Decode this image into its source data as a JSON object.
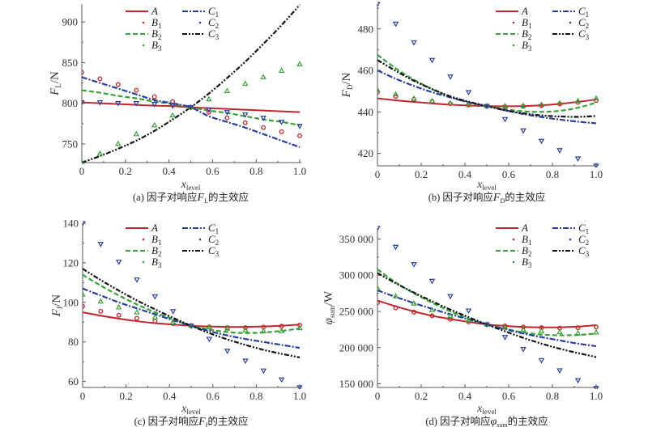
{
  "chart_data": [
    {
      "id": "a",
      "type": "line",
      "caption": "(a) 因子对响应F_L的主效应",
      "caption_prefix": "(a) 因子对响应",
      "caption_var": "F",
      "caption_sub": "L",
      "caption_suffix": "的主效应",
      "xlabel": "x",
      "xlabel_sub": "level",
      "ylabel": "F",
      "ylabel_sub": "L",
      "ylabel_unit": "/N",
      "xlim": [
        0,
        1.0
      ],
      "ylim": [
        727,
        922
      ],
      "xticks": [
        0,
        0.2,
        0.4,
        0.6,
        0.8,
        1.0
      ],
      "xtick_labels": [
        "0",
        "0.2",
        "0.4",
        "0.6",
        "0.8",
        "1.0"
      ],
      "yticks": [
        750,
        800,
        850,
        900
      ],
      "ytick_labels": [
        "750",
        "800",
        "850",
        "900"
      ],
      "legend": "top-center",
      "x": [
        0,
        0.0833,
        0.1667,
        0.25,
        0.3333,
        0.4167,
        0.5,
        0.5833,
        0.6667,
        0.75,
        0.8333,
        0.9167,
        1.0
      ],
      "series": [
        {
          "name": "A",
          "kind": "line",
          "style": "solid",
          "color": "#c0262d",
          "values": [
            801,
            800,
            799,
            798,
            797,
            796.5,
            795,
            794,
            793,
            792,
            791,
            790,
            789
          ]
        },
        {
          "name": "B1",
          "kind": "marker",
          "marker": "circle",
          "color": "#c0262d",
          "values": [
            838,
            830,
            823,
            816,
            808,
            802,
            795,
            789,
            782,
            776,
            770,
            765,
            760
          ]
        },
        {
          "name": "B2",
          "kind": "line",
          "style": "dash",
          "color": "#3aa03a",
          "values": [
            816,
            813,
            809,
            806,
            802,
            799,
            795,
            791,
            788,
            784,
            780,
            777,
            773
          ]
        },
        {
          "name": "B3",
          "kind": "marker",
          "marker": "triangle",
          "color": "#3aa03a",
          "values": [
            727,
            738,
            750,
            762,
            773,
            785,
            795,
            805,
            815,
            824,
            832,
            840,
            848
          ]
        },
        {
          "name": "C1",
          "kind": "line",
          "style": "dashdot",
          "color": "#2a3f9c",
          "values": [
            832,
            825,
            818,
            811,
            804,
            800,
            795,
            784,
            777,
            770,
            762,
            754,
            746
          ]
        },
        {
          "name": "C2",
          "kind": "marker",
          "marker": "triangle-down",
          "color": "#2a3f9c",
          "values": [
            801,
            801,
            800,
            800,
            799,
            797,
            795,
            792,
            789,
            786,
            782,
            777,
            772
          ]
        },
        {
          "name": "C3",
          "kind": "line",
          "style": "dashdotdot",
          "color": "#111111",
          "values": [
            727,
            735,
            744,
            754,
            766,
            780,
            795,
            812,
            831,
            851,
            873,
            896,
            921
          ]
        }
      ]
    },
    {
      "id": "b",
      "type": "line",
      "caption": "(b) 因子对响应F_D的主效应",
      "caption_prefix": "(b) 因子对响应",
      "caption_var": "F",
      "caption_sub": "D",
      "caption_suffix": "的主效应",
      "xlabel": "x",
      "xlabel_sub": "level",
      "ylabel": "F",
      "ylabel_sub": "D",
      "ylabel_unit": "/N",
      "xlim": [
        0,
        1.0
      ],
      "ylim": [
        414,
        492
      ],
      "xticks": [
        0,
        0.2,
        0.4,
        0.6,
        0.8,
        1.0
      ],
      "xtick_labels": [
        "0",
        "0.2",
        "0.4",
        "0.6",
        "0.8",
        "1.0"
      ],
      "yticks": [
        420,
        440,
        460,
        480
      ],
      "ytick_labels": [
        "420",
        "440",
        "460",
        "480"
      ],
      "legend": "top-right",
      "x": [
        0,
        0.0833,
        0.1667,
        0.25,
        0.3333,
        0.4167,
        0.5,
        0.5833,
        0.6667,
        0.75,
        0.8333,
        0.9167,
        1.0
      ],
      "series": [
        {
          "name": "A",
          "kind": "line",
          "style": "solid",
          "color": "#c0262d",
          "values": [
            446.5,
            445.6,
            444.8,
            444.1,
            443.5,
            443.1,
            442.8,
            442.7,
            442.8,
            443.2,
            443.9,
            444.8,
            446
          ]
        },
        {
          "name": "B1",
          "kind": "marker",
          "marker": "circle",
          "color": "#c0262d",
          "values": [
            449.5,
            447.5,
            446,
            445,
            444,
            443.3,
            442.8,
            442.6,
            442.7,
            443.1,
            443.8,
            444.6,
            445.5
          ]
        },
        {
          "name": "B2",
          "kind": "line",
          "style": "dash",
          "color": "#3aa03a",
          "values": [
            467.5,
            461,
            455.5,
            451,
            447.3,
            444.6,
            442.8,
            441.3,
            440.3,
            440,
            440.5,
            442,
            444.5
          ]
        },
        {
          "name": "B3",
          "kind": "marker",
          "marker": "triangle",
          "color": "#3aa03a",
          "values": [
            450.5,
            448.5,
            446.5,
            445.3,
            444.2,
            443.4,
            442.8,
            442.8,
            443,
            443.5,
            444.2,
            445.3,
            446.5
          ]
        },
        {
          "name": "C1",
          "kind": "line",
          "style": "dashdot",
          "color": "#2a3f9c",
          "values": [
            460,
            456,
            452.5,
            449.5,
            447,
            444.6,
            442.8,
            440.8,
            439,
            437.5,
            436.3,
            435.3,
            434.5
          ]
        },
        {
          "name": "C2",
          "kind": "marker",
          "marker": "triangle-down",
          "color": "#2a3f9c",
          "values": [
            492,
            482.5,
            473.5,
            465,
            457,
            449.5,
            442.8,
            436.5,
            431,
            426,
            421.5,
            417.5,
            414
          ]
        },
        {
          "name": "C3",
          "kind": "line",
          "style": "dashdotdot",
          "color": "#111111",
          "values": [
            465,
            459.8,
            455,
            451,
            447.5,
            444.9,
            442.8,
            440.8,
            439.3,
            438.3,
            437.8,
            437.6,
            438
          ]
        }
      ]
    },
    {
      "id": "c",
      "type": "line",
      "caption": "(c) 因子对响应F_f的主效应",
      "caption_prefix": "(c) 因子对响应",
      "caption_var": "F",
      "caption_sub": "f",
      "caption_suffix": "的主效应",
      "xlabel": "x",
      "xlabel_sub": "level",
      "ylabel": "F",
      "ylabel_sub": "f",
      "ylabel_unit": "/N",
      "xlim": [
        0,
        1.0
      ],
      "ylim": [
        57,
        140
      ],
      "xticks": [
        0,
        0.2,
        0.4,
        0.6,
        0.8,
        1.0
      ],
      "xtick_labels": [
        "0",
        "0.2",
        "0.4",
        "0.6",
        "0.8",
        "1.0"
      ],
      "yticks": [
        60,
        80,
        100,
        120,
        140
      ],
      "ytick_labels": [
        "60",
        "80",
        "100",
        "120",
        "140"
      ],
      "legend": "top-center",
      "x": [
        0,
        0.0833,
        0.1667,
        0.25,
        0.3333,
        0.4167,
        0.5,
        0.5833,
        0.6667,
        0.75,
        0.8333,
        0.9167,
        1.0
      ],
      "series": [
        {
          "name": "A",
          "kind": "line",
          "style": "solid",
          "color": "#c0262d",
          "values": [
            95,
            93.3,
            91.8,
            90.5,
            89.5,
            88.8,
            88.2,
            87.8,
            87.6,
            87.6,
            87.8,
            88.2,
            88.8
          ]
        },
        {
          "name": "B1",
          "kind": "marker",
          "marker": "circle",
          "color": "#c0262d",
          "values": [
            98,
            95.5,
            93.5,
            92,
            90.5,
            89.3,
            88.2,
            87.6,
            87.2,
            87.2,
            87.5,
            88,
            88.5
          ]
        },
        {
          "name": "B2",
          "kind": "line",
          "style": "dash",
          "color": "#3aa03a",
          "values": [
            114,
            108.5,
            103.5,
            99,
            95,
            91.5,
            88.2,
            86.3,
            85,
            84.5,
            84.8,
            85.6,
            86.8
          ]
        },
        {
          "name": "B3",
          "kind": "marker",
          "marker": "triangle",
          "color": "#3aa03a",
          "values": [
            104,
            100.5,
            97.5,
            95,
            92.5,
            90,
            88.2,
            87.5,
            86.8,
            86,
            85.5,
            85.5,
            87
          ]
        },
        {
          "name": "C1",
          "kind": "line",
          "style": "dashdot",
          "color": "#2a3f9c",
          "values": [
            107,
            103.5,
            100,
            97,
            94,
            91,
            88.2,
            85.5,
            83.3,
            81.5,
            80,
            78.5,
            77
          ]
        },
        {
          "name": "C2",
          "kind": "marker",
          "marker": "triangle-down",
          "color": "#2a3f9c",
          "values": [
            140,
            129.5,
            120.5,
            111.5,
            103,
            95.5,
            88.2,
            81.5,
            75.5,
            70.5,
            65.5,
            61,
            57
          ]
        },
        {
          "name": "C3",
          "kind": "line",
          "style": "dashdotdot",
          "color": "#111111",
          "values": [
            117,
            111.3,
            106,
            101,
            96.5,
            92.2,
            88.2,
            84.5,
            81.3,
            78.5,
            76,
            74,
            72.2
          ]
        }
      ]
    },
    {
      "id": "d",
      "type": "line",
      "caption": "(d) 因子对响应φ_sum的主效应",
      "caption_prefix": "(d) 因子对响应",
      "caption_var": "φ",
      "caption_sub": "sum",
      "caption_suffix": "的主效应",
      "xlabel": "x",
      "xlabel_sub": "level",
      "ylabel": "φ",
      "ylabel_sub": "sum",
      "ylabel_unit": "/W",
      "xlim": [
        0,
        1.0
      ],
      "ylim": [
        145000,
        365000
      ],
      "xticks": [
        0,
        0.2,
        0.4,
        0.6,
        0.8,
        1.0
      ],
      "xtick_labels": [
        "0",
        "0.2",
        "0.4",
        "0.6",
        "0.8",
        "1.0"
      ],
      "yticks": [
        150000,
        200000,
        250000,
        300000,
        350000
      ],
      "ytick_labels": [
        "150 000",
        "200 000",
        "250 000",
        "300 000",
        "350 000"
      ],
      "legend": "top-right",
      "x": [
        0,
        0.0833,
        0.1667,
        0.25,
        0.3333,
        0.4167,
        0.5,
        0.5833,
        0.6667,
        0.75,
        0.8333,
        0.9167,
        1.0
      ],
      "series": [
        {
          "name": "A",
          "kind": "line",
          "style": "solid",
          "color": "#c0262d",
          "values": [
            265000,
            257000,
            250000,
            244000,
            239500,
            235500,
            232000,
            230000,
            228500,
            228000,
            228000,
            229000,
            231000
          ]
        },
        {
          "name": "B1",
          "kind": "marker",
          "marker": "circle",
          "color": "#c0262d",
          "values": [
            262000,
            255000,
            249000,
            244000,
            239000,
            235500,
            232000,
            230000,
            228500,
            227500,
            227000,
            227500,
            228500
          ]
        },
        {
          "name": "B2",
          "kind": "line",
          "style": "dash",
          "color": "#3aa03a",
          "values": [
            308000,
            290000,
            275000,
            262000,
            250000,
            240000,
            232000,
            226000,
            221000,
            218000,
            217000,
            217500,
            219500
          ]
        },
        {
          "name": "B3",
          "kind": "marker",
          "marker": "triangle",
          "color": "#3aa03a",
          "values": [
            282000,
            271000,
            261000,
            252000,
            244000,
            238000,
            232000,
            228500,
            225000,
            223000,
            221500,
            220000,
            221000
          ]
        },
        {
          "name": "C1",
          "kind": "line",
          "style": "dashdot",
          "color": "#2a3f9c",
          "values": [
            279000,
            270000,
            261500,
            253500,
            246000,
            239000,
            232000,
            225500,
            219500,
            214500,
            210000,
            205500,
            202000
          ]
        },
        {
          "name": "C2",
          "kind": "marker",
          "marker": "triangle-down",
          "color": "#2a3f9c",
          "values": [
            365000,
            339000,
            315000,
            292000,
            271000,
            251000,
            232000,
            214500,
            198000,
            182500,
            168500,
            155000,
            144000
          ]
        },
        {
          "name": "C3",
          "kind": "line",
          "style": "dashdotdot",
          "color": "#111111",
          "values": [
            303000,
            289000,
            276000,
            264000,
            252500,
            242000,
            232000,
            222500,
            213500,
            205500,
            198500,
            192500,
            187000
          ]
        }
      ]
    }
  ],
  "legend_labels": [
    {
      "key": "A",
      "letter": "A",
      "sub": ""
    },
    {
      "key": "B1",
      "letter": "B",
      "sub": "1"
    },
    {
      "key": "B2",
      "letter": "B",
      "sub": "2"
    },
    {
      "key": "B3",
      "letter": "B",
      "sub": "3"
    },
    {
      "key": "C1",
      "letter": "C",
      "sub": "1"
    },
    {
      "key": "C2",
      "letter": "C",
      "sub": "2"
    },
    {
      "key": "C3",
      "letter": "C",
      "sub": "3"
    }
  ]
}
